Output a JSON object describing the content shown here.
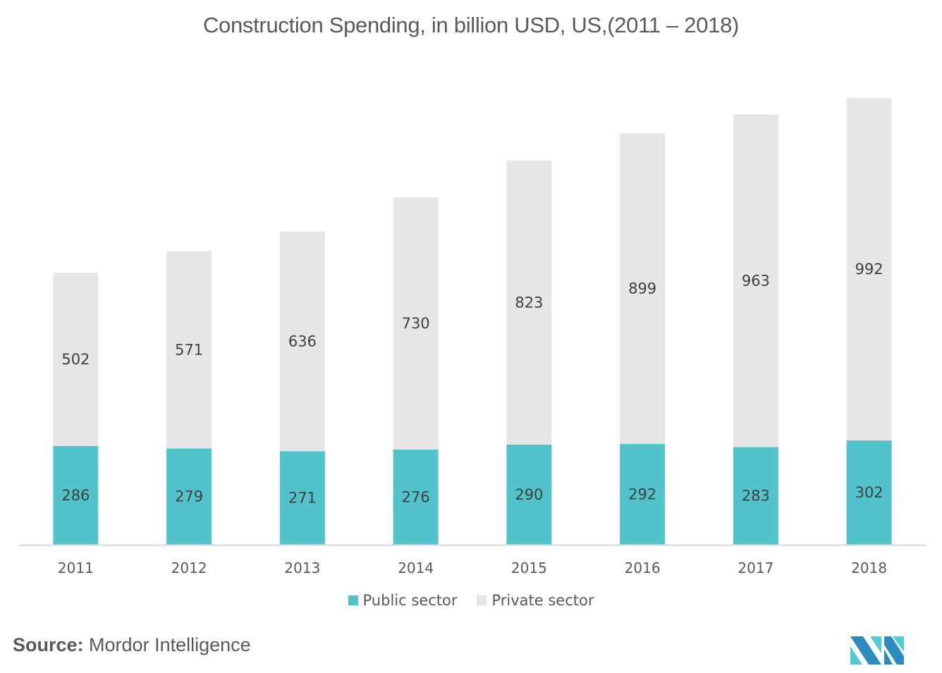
{
  "chart_data": {
    "type": "bar",
    "stacked": true,
    "title": "Construction Spending, in billion USD, US,(2011 – 2018)",
    "xlabel": "",
    "ylabel": "",
    "categories": [
      "2011",
      "2012",
      "2013",
      "2014",
      "2015",
      "2016",
      "2017",
      "2018"
    ],
    "series": [
      {
        "name": "Public sector",
        "color": "#52C3CA",
        "values": [
          286,
          279,
          271,
          276,
          290,
          292,
          283,
          302
        ]
      },
      {
        "name": "Private sector",
        "color": "#E6E6E6",
        "values": [
          502,
          571,
          636,
          730,
          823,
          899,
          963,
          992
        ]
      }
    ],
    "ylim": [
      0,
      1300
    ],
    "grid": false,
    "y_axis_visible": false,
    "data_labels": true,
    "legend_position": "bottom-center"
  },
  "source": {
    "label": "Source:",
    "text": "Mordor Intelligence"
  },
  "logo": {
    "name": "Mordor Intelligence logo",
    "colors": [
      "#2E8BC0",
      "#4ECDD4"
    ]
  }
}
